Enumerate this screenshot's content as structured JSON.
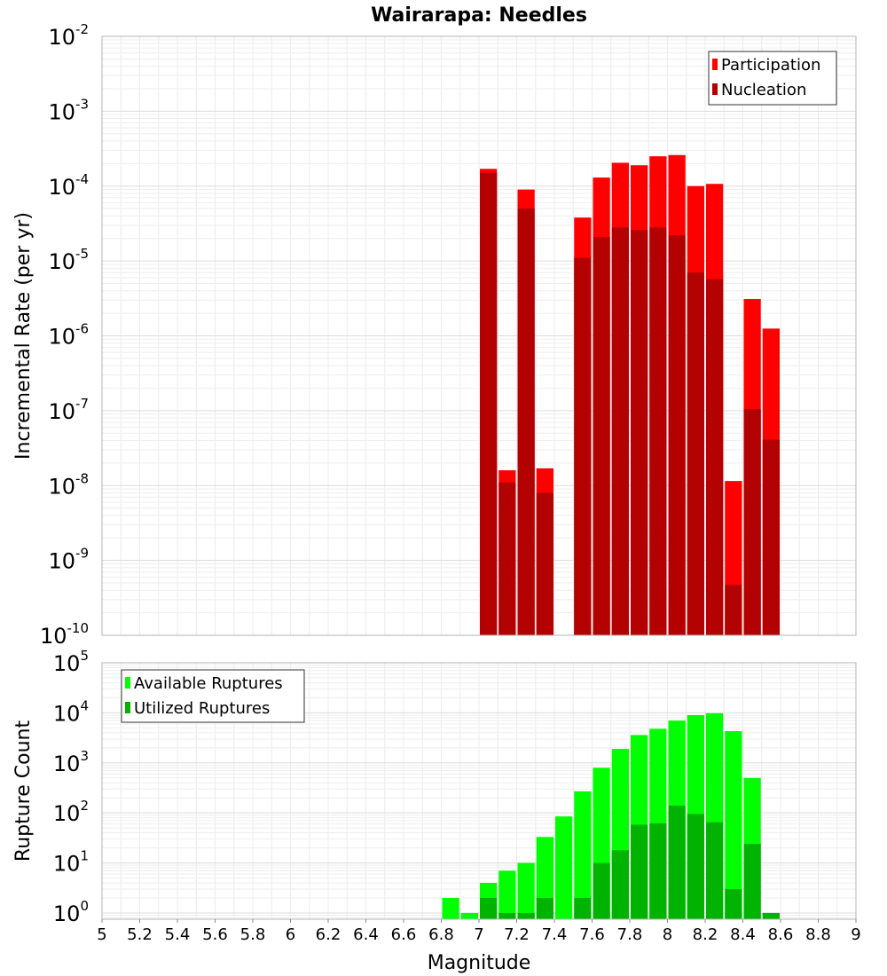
{
  "chart_data": [
    {
      "type": "bar",
      "title": "Wairarapa: Needles",
      "xlabel": "",
      "ylabel": "Incremental Rate (per yr)",
      "y_scale": "log",
      "ylim": [
        1e-10,
        0.01
      ],
      "xlim": [
        5,
        9
      ],
      "bin_width": 0.1,
      "legend_position": "top-right",
      "grid": true,
      "y_ticks": [
        {
          "base": "10",
          "exp": "-10"
        },
        {
          "base": "10",
          "exp": "-9"
        },
        {
          "base": "10",
          "exp": "-8"
        },
        {
          "base": "10",
          "exp": "-7"
        },
        {
          "base": "10",
          "exp": "-6"
        },
        {
          "base": "10",
          "exp": "-5"
        },
        {
          "base": "10",
          "exp": "-4"
        },
        {
          "base": "10",
          "exp": "-3"
        },
        {
          "base": "10",
          "exp": "-2"
        }
      ],
      "series": [
        {
          "name": "Participation",
          "color": "#ff0000",
          "points": [
            [
              7.05,
              0.00017
            ],
            [
              7.15,
              1.6e-08
            ],
            [
              7.25,
              9e-05
            ],
            [
              7.35,
              1.7e-08
            ],
            [
              7.55,
              3.8e-05
            ],
            [
              7.65,
              0.00013
            ],
            [
              7.75,
              0.000205
            ],
            [
              7.85,
              0.00019
            ],
            [
              7.95,
              0.00025
            ],
            [
              8.05,
              0.00026
            ],
            [
              8.15,
              0.0001
            ],
            [
              8.25,
              0.000107
            ],
            [
              8.35,
              1.15e-08
            ],
            [
              8.45,
              3.1e-06
            ],
            [
              8.55,
              1.25e-06
            ]
          ]
        },
        {
          "name": "Nucleation",
          "color": "#b30000",
          "points": [
            [
              7.05,
              0.00015
            ],
            [
              7.15,
              1.1e-08
            ],
            [
              7.25,
              5e-05
            ],
            [
              7.35,
              8e-09
            ],
            [
              7.55,
              1.1e-05
            ],
            [
              7.65,
              2.1e-05
            ],
            [
              7.75,
              2.8e-05
            ],
            [
              7.85,
              2.6e-05
            ],
            [
              7.95,
              2.8e-05
            ],
            [
              8.05,
              2.2e-05
            ],
            [
              8.15,
              7e-06
            ],
            [
              8.25,
              5.7e-06
            ],
            [
              8.35,
              4.7e-10
            ],
            [
              8.45,
              1.05e-07
            ],
            [
              8.55,
              4.1e-08
            ]
          ]
        }
      ]
    },
    {
      "type": "bar",
      "title": "",
      "xlabel": "Magnitude",
      "ylabel": "Rupture Count",
      "y_scale": "log",
      "ylim": [
        0.75,
        100000.0
      ],
      "xlim": [
        5,
        9
      ],
      "bin_width": 0.1,
      "legend_position": "top-left",
      "grid": true,
      "x_ticks": [
        "5",
        "5.2",
        "5.4",
        "5.6",
        "5.8",
        "6",
        "6.2",
        "6.4",
        "6.6",
        "6.8",
        "7",
        "7.2",
        "7.4",
        "7.6",
        "7.8",
        "8",
        "8.2",
        "8.4",
        "8.6",
        "8.8",
        "9"
      ],
      "y_ticks": [
        {
          "base": "10",
          "exp": "0"
        },
        {
          "base": "10",
          "exp": "1"
        },
        {
          "base": "10",
          "exp": "2"
        },
        {
          "base": "10",
          "exp": "3"
        },
        {
          "base": "10",
          "exp": "4"
        },
        {
          "base": "10",
          "exp": "5"
        }
      ],
      "series": [
        {
          "name": "Available Ruptures",
          "color": "#00ff00",
          "points": [
            [
              6.85,
              2
            ],
            [
              6.95,
              1
            ],
            [
              7.05,
              4
            ],
            [
              7.15,
              7
            ],
            [
              7.25,
              10
            ],
            [
              7.35,
              33
            ],
            [
              7.45,
              85
            ],
            [
              7.55,
              270
            ],
            [
              7.65,
              800
            ],
            [
              7.75,
              1900
            ],
            [
              7.85,
              3600
            ],
            [
              7.95,
              4800
            ],
            [
              8.05,
              7000
            ],
            [
              8.15,
              9000
            ],
            [
              8.25,
              9800
            ],
            [
              8.35,
              4300
            ],
            [
              8.45,
              500
            ],
            [
              8.55,
              1
            ]
          ]
        },
        {
          "name": "Utilized Ruptures",
          "color": "#00b300",
          "points": [
            [
              7.05,
              2
            ],
            [
              7.15,
              1
            ],
            [
              7.25,
              1
            ],
            [
              7.35,
              2
            ],
            [
              7.55,
              2
            ],
            [
              7.65,
              10
            ],
            [
              7.75,
              18
            ],
            [
              7.85,
              58
            ],
            [
              7.95,
              62
            ],
            [
              8.05,
              140
            ],
            [
              8.15,
              95
            ],
            [
              8.25,
              65
            ],
            [
              8.35,
              3
            ],
            [
              8.45,
              24
            ],
            [
              8.55,
              1
            ]
          ]
        }
      ]
    }
  ]
}
